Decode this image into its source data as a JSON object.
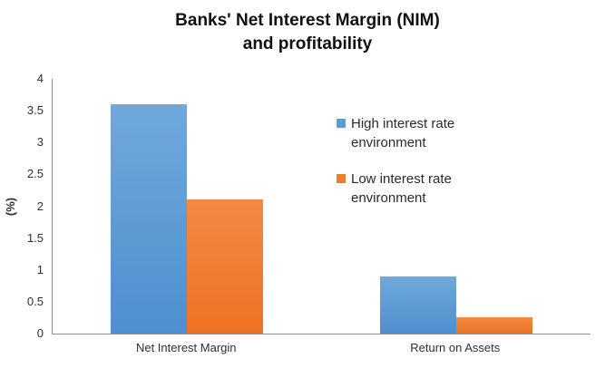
{
  "chart_data": {
    "type": "bar",
    "title_lines": [
      "Banks' Net Interest Margin (NIM)",
      "and profitability"
    ],
    "categories": [
      "Net Interest Margin",
      "Return on Assets"
    ],
    "series": [
      {
        "name": "High interest rate environment",
        "color": "#5B9BD5",
        "values": [
          3.6,
          0.9
        ]
      },
      {
        "name": "Low interest rate environment",
        "color": "#ED7D31",
        "values": [
          2.1,
          0.25
        ]
      }
    ],
    "xlabel": "",
    "ylabel": "(%)",
    "ylim": [
      0,
      4
    ],
    "yticks": [
      0,
      0.5,
      1,
      1.5,
      2,
      2.5,
      3,
      3.5,
      4
    ],
    "grid": false,
    "legend_position": "right-center",
    "axis_color": "#8e8e8e"
  }
}
